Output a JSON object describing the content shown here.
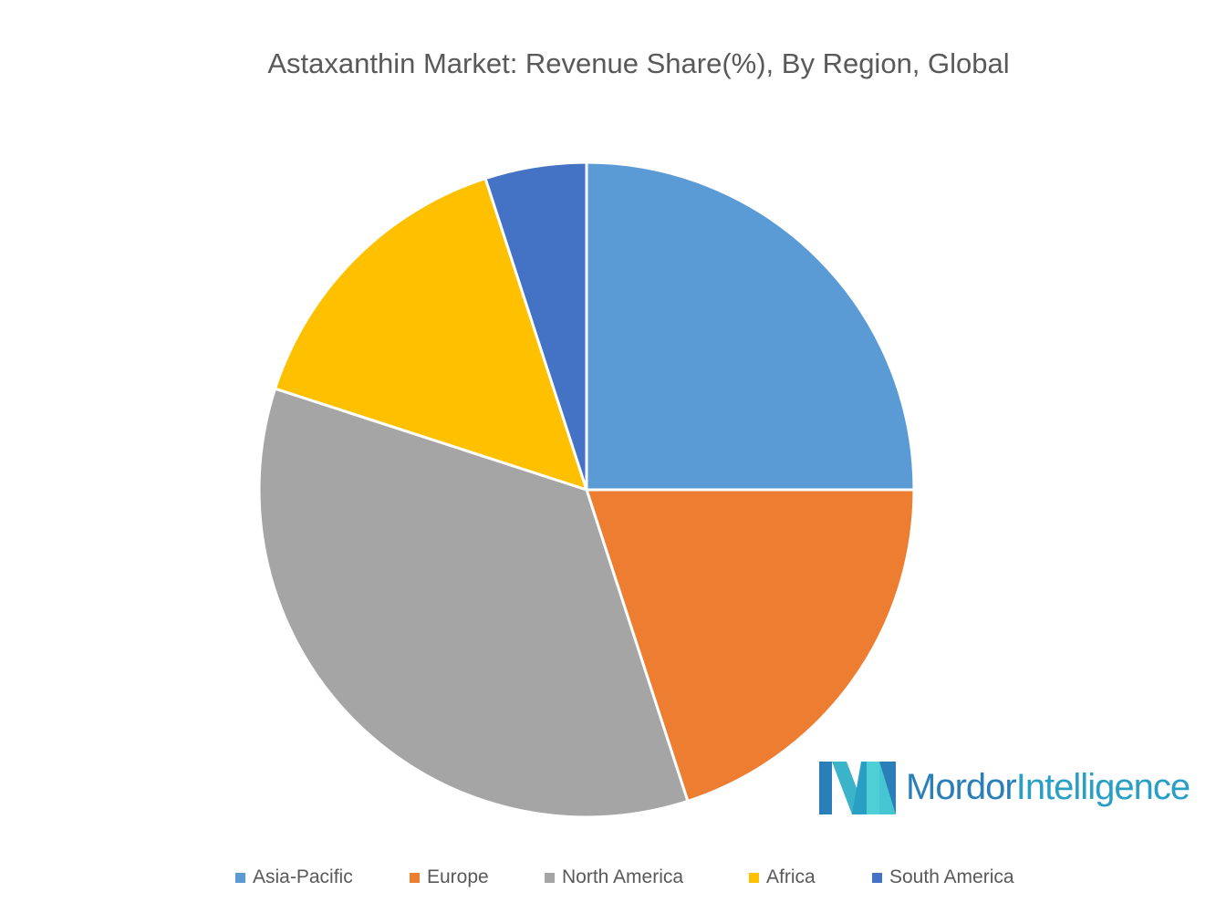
{
  "chart_data": {
    "type": "pie",
    "title": "Astaxanthin Market: Revenue Share(%), By Region, Global",
    "categories": [
      "Asia-Pacific",
      "Europe",
      "North America",
      "Africa",
      "South America"
    ],
    "values": [
      25,
      20,
      35,
      15,
      5
    ],
    "colors": [
      "#5b9bd5",
      "#ed7d31",
      "#a5a5a5",
      "#ffc000",
      "#4472c4"
    ],
    "start_angle_deg": 0,
    "direction": "clockwise",
    "legend_position": "bottom"
  },
  "legend": {
    "items": [
      {
        "label": "Asia-Pacific",
        "color": "#5b9bd5"
      },
      {
        "label": "Europe",
        "color": "#ed7d31"
      },
      {
        "label": "North America",
        "color": "#a5a5a5"
      },
      {
        "label": "Africa",
        "color": "#ffc000"
      },
      {
        "label": "South America",
        "color": "#4472c4"
      }
    ]
  },
  "logo": {
    "word1": "Mordor",
    "word2": "Intelligence",
    "icon": "mordor-intelligence-logo-icon"
  }
}
